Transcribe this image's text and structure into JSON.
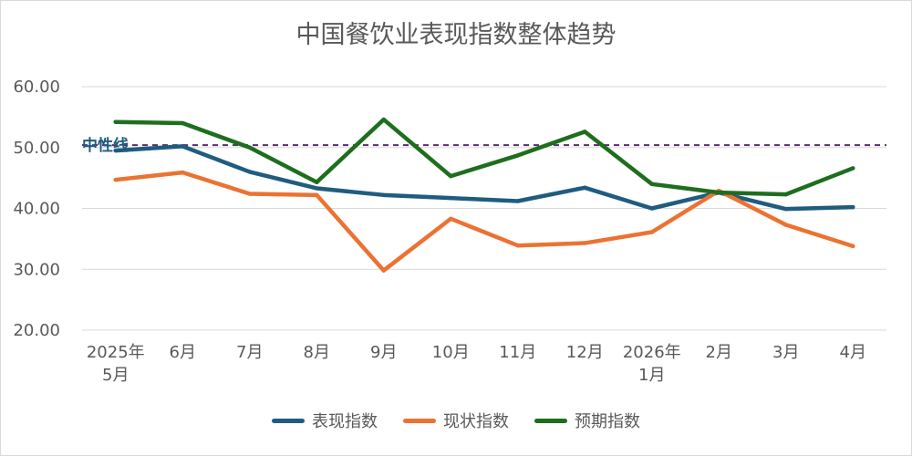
{
  "chart_data": {
    "type": "line",
    "title": "中国餐饮业表现指数整体趋势",
    "categories": [
      [
        "2025年",
        "5月"
      ],
      [
        "6月"
      ],
      [
        "7月"
      ],
      [
        "8月"
      ],
      [
        "9月"
      ],
      [
        "10月"
      ],
      [
        "11月"
      ],
      [
        "12月"
      ],
      [
        "2026年",
        "1月"
      ],
      [
        "2月"
      ],
      [
        "3月"
      ],
      [
        "4月"
      ]
    ],
    "ylim": [
      20,
      60
    ],
    "yticks": [
      "20.00",
      "30.00",
      "40.00",
      "50.00",
      "60.00"
    ],
    "grid": true,
    "legend": "bottom",
    "reference_line": {
      "label": "中性线",
      "value": 50.4,
      "color": "#5b2a6e"
    },
    "series": [
      {
        "name": "表现指数",
        "color": "#1f5c80",
        "values": [
          49.5,
          50.2,
          46.0,
          43.3,
          42.2,
          41.7,
          41.2,
          43.4,
          40.0,
          42.6,
          39.9,
          40.2
        ]
      },
      {
        "name": "现状指数",
        "color": "#ec7232",
        "values": [
          44.7,
          45.9,
          42.4,
          42.2,
          29.8,
          38.3,
          33.9,
          34.3,
          36.1,
          42.9,
          37.3,
          33.8
        ]
      },
      {
        "name": "预期指数",
        "color": "#1e6e1e",
        "values": [
          54.2,
          54.0,
          50.0,
          44.3,
          54.6,
          45.3,
          48.7,
          52.6,
          44.0,
          42.6,
          42.3,
          46.6
        ]
      }
    ]
  }
}
